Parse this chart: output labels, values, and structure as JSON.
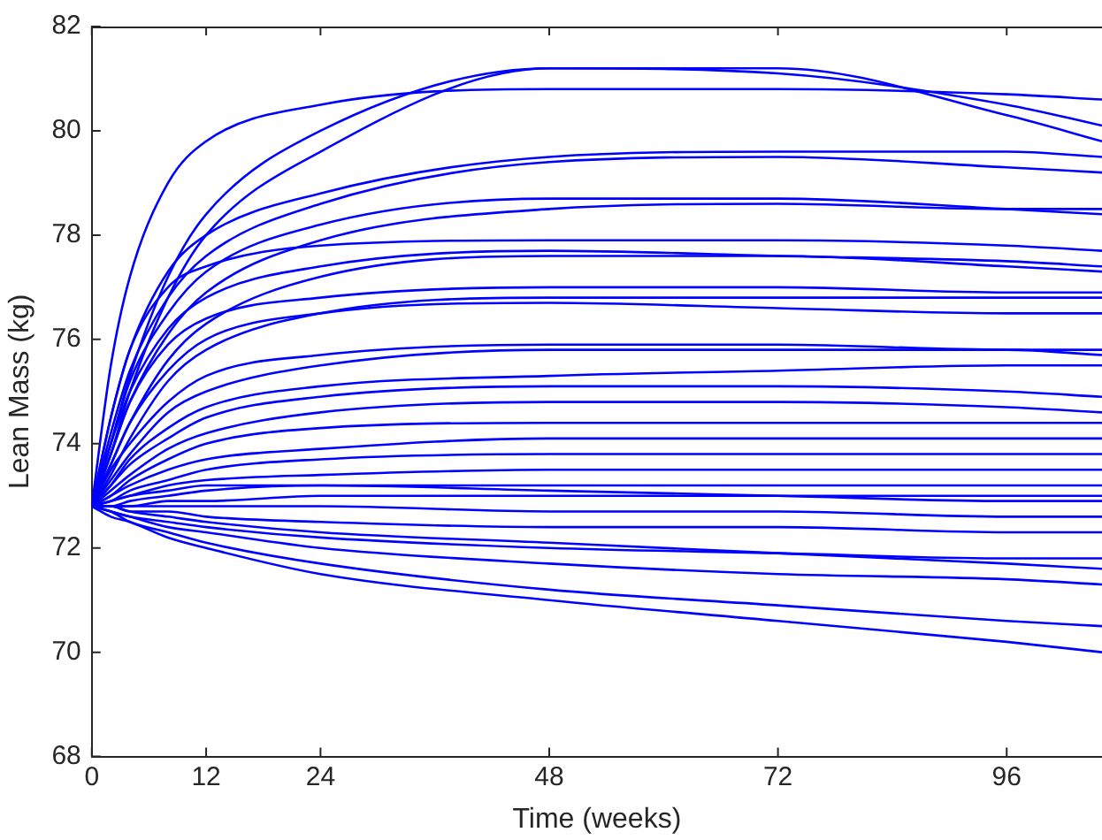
{
  "chart_data": {
    "type": "line",
    "xlabel": "Time (weeks)",
    "ylabel": "Lean Mass (kg)",
    "x": [
      0,
      2,
      4,
      8,
      12,
      24,
      48,
      72,
      96,
      106
    ],
    "xlim": [
      0,
      106
    ],
    "xticks": [
      0,
      12,
      24,
      48,
      72,
      96
    ],
    "ylim": [
      68,
      82
    ],
    "yticks": [
      68,
      70,
      72,
      74,
      76,
      78,
      80,
      82
    ],
    "grid": false,
    "legend": false,
    "marker": "none",
    "line_style": "solid",
    "series": [
      {
        "color": "#0000ff",
        "values": [
          72.8,
          75.5,
          77.2,
          79,
          79.8,
          80.5,
          80.8,
          80.8,
          80.7,
          80.6
        ]
      },
      {
        "color": "#0000ff",
        "values": [
          72.8,
          74,
          75.3,
          77.2,
          78.4,
          80.0,
          81.2,
          81.1,
          80.5,
          80.1
        ]
      },
      {
        "color": "#0000ff",
        "values": [
          72.8,
          73.8,
          75,
          76.8,
          78,
          79.6,
          81.2,
          81.2,
          80.3,
          79.8
        ]
      },
      {
        "color": "#0000ff",
        "values": [
          72.8,
          74.5,
          75.8,
          77.3,
          78,
          78.8,
          79.5,
          79.6,
          79.6,
          79.5
        ]
      },
      {
        "color": "#0000ff",
        "values": [
          72.8,
          74.2,
          75.4,
          76.8,
          77.6,
          78.6,
          79.4,
          79.5,
          79.3,
          79.2
        ]
      },
      {
        "color": "#0000ff",
        "values": [
          72.8,
          74.5,
          75.8,
          77,
          77.4,
          77.8,
          77.9,
          77.9,
          77.8,
          77.7
        ]
      },
      {
        "color": "#0000ff",
        "values": [
          72.8,
          74,
          75.2,
          76.5,
          77.3,
          78.2,
          78.7,
          78.7,
          78.5,
          78.4
        ]
      },
      {
        "color": "#0000ff",
        "values": [
          72.8,
          73.8,
          74.8,
          76.1,
          76.9,
          77.9,
          78.5,
          78.6,
          78.5,
          78.5
        ]
      },
      {
        "color": "#0000ff",
        "values": [
          72.8,
          74,
          75,
          76.2,
          76.8,
          77.4,
          77.7,
          77.6,
          77.5,
          77.4
        ]
      },
      {
        "color": "#0000ff",
        "values": [
          72.8,
          73.6,
          74.4,
          75.6,
          76.3,
          77.2,
          77.6,
          77.6,
          77.4,
          77.3
        ]
      },
      {
        "color": "#0000ff",
        "values": [
          72.8,
          73.8,
          74.8,
          75.9,
          76.4,
          76.8,
          77.0,
          77.0,
          76.9,
          76.9
        ]
      },
      {
        "color": "#0000ff",
        "values": [
          72.8,
          73.4,
          74.1,
          75.2,
          75.8,
          76.5,
          76.8,
          76.8,
          76.8,
          76.8
        ]
      },
      {
        "color": "#0000ff",
        "values": [
          72.8,
          73.6,
          74.4,
          75.4,
          76.0,
          76.5,
          76.7,
          76.6,
          76.5,
          76.5
        ]
      },
      {
        "color": "#0000ff",
        "values": [
          72.8,
          73.5,
          74.0,
          74.8,
          75.3,
          75.7,
          75.9,
          75.9,
          75.8,
          75.8
        ]
      },
      {
        "color": "#0000ff",
        "values": [
          72.8,
          73.3,
          73.8,
          74.6,
          75.0,
          75.5,
          75.8,
          75.8,
          75.8,
          75.7
        ]
      },
      {
        "color": "#0000ff",
        "values": [
          72.8,
          73.2,
          73.7,
          74.3,
          74.7,
          75.1,
          75.3,
          75.4,
          75.5,
          75.5
        ]
      },
      {
        "color": "#0000ff",
        "values": [
          72.8,
          73.2,
          73.6,
          74.1,
          74.5,
          74.9,
          75.1,
          75.1,
          75.0,
          74.9
        ]
      },
      {
        "color": "#0000ff",
        "values": [
          72.8,
          73.1,
          73.4,
          73.9,
          74.2,
          74.6,
          74.8,
          74.8,
          74.7,
          74.6
        ]
      },
      {
        "color": "#0000ff",
        "values": [
          72.8,
          73.0,
          73.3,
          73.7,
          74.0,
          74.3,
          74.4,
          74.4,
          74.4,
          74.4
        ]
      },
      {
        "color": "#0000ff",
        "values": [
          72.8,
          73.0,
          73.2,
          73.5,
          73.7,
          73.9,
          74.1,
          74.1,
          74.1,
          74.1
        ]
      },
      {
        "color": "#0000ff",
        "values": [
          72.8,
          72.9,
          73.1,
          73.3,
          73.5,
          73.7,
          73.8,
          73.8,
          73.8,
          73.8
        ]
      },
      {
        "color": "#0000ff",
        "values": [
          72.8,
          72.9,
          73.0,
          73.2,
          73.3,
          73.4,
          73.5,
          73.5,
          73.5,
          73.5
        ]
      },
      {
        "color": "#0000ff",
        "values": [
          72.8,
          72.8,
          72.9,
          73.0,
          73.1,
          73.2,
          73.2,
          73.2,
          73.2,
          73.2
        ]
      },
      {
        "color": "#0000ff",
        "values": [
          72.8,
          72.8,
          72.8,
          72.9,
          72.9,
          73.0,
          73.0,
          73.0,
          73.0,
          73.0
        ]
      },
      {
        "color": "#0000ff",
        "values": [
          72.8,
          72.8,
          72.8,
          72.8,
          72.8,
          72.8,
          72.7,
          72.7,
          72.6,
          72.6
        ]
      },
      {
        "color": "#0000ff",
        "values": [
          72.8,
          72.8,
          72.7,
          72.7,
          72.6,
          72.5,
          72.4,
          72.4,
          72.3,
          72.3
        ]
      },
      {
        "color": "#0000ff",
        "values": [
          72.8,
          72.7,
          72.6,
          72.5,
          72.4,
          72.2,
          72.0,
          71.9,
          71.8,
          71.8
        ]
      },
      {
        "color": "#0000ff",
        "values": [
          72.8,
          72.7,
          72.6,
          72.4,
          72.3,
          72.0,
          71.7,
          71.5,
          71.4,
          71.3
        ]
      },
      {
        "color": "#0000ff",
        "values": [
          72.8,
          72.7,
          72.5,
          72.3,
          72.1,
          71.7,
          71.2,
          70.9,
          70.6,
          70.5
        ]
      },
      {
        "color": "#0000ff",
        "values": [
          72.8,
          72.6,
          72.5,
          72.2,
          72.0,
          71.5,
          71.0,
          70.6,
          70.2,
          70.0
        ]
      },
      {
        "color": "#0000ff",
        "values": [
          72.8,
          72.8,
          72.7,
          72.6,
          72.5,
          72.3,
          72.1,
          71.9,
          71.7,
          71.6
        ]
      },
      {
        "color": "#0000ff",
        "values": [
          72.8,
          72.9,
          73.0,
          73.1,
          73.2,
          73.2,
          73.1,
          73.0,
          72.9,
          72.9
        ]
      }
    ]
  }
}
